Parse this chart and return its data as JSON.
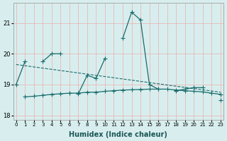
{
  "xlabel": "Humidex (Indice chaleur)",
  "x_values": [
    0,
    1,
    2,
    3,
    4,
    5,
    6,
    7,
    8,
    9,
    10,
    11,
    12,
    13,
    14,
    15,
    16,
    17,
    18,
    19,
    20,
    21,
    22,
    23
  ],
  "line1_y": [
    19.0,
    19.75,
    null,
    19.75,
    20.0,
    20.0,
    null,
    18.7,
    19.3,
    19.2,
    19.85,
    null,
    20.5,
    21.35,
    21.1,
    19.0,
    18.85,
    null,
    18.8,
    18.85,
    18.9,
    18.9,
    null,
    18.5
  ],
  "line2_y": [
    null,
    18.6,
    18.62,
    18.65,
    18.68,
    18.7,
    18.72,
    18.72,
    18.75,
    18.75,
    18.78,
    18.8,
    18.82,
    18.83,
    18.84,
    18.85,
    18.85,
    18.85,
    18.82,
    18.8,
    18.78,
    18.76,
    18.72,
    18.68
  ],
  "trend_x": [
    0,
    23
  ],
  "trend_y": [
    19.65,
    18.75
  ],
  "ylim": [
    17.85,
    21.65
  ],
  "yticks": [
    18,
    19,
    20,
    21
  ],
  "xlim": [
    -0.3,
    23.3
  ],
  "bg_color": "#d8eeee",
  "grid_color_major": "#e8b8b8",
  "line_color": "#1a6b6b",
  "marker_style": "+",
  "marker_size": 4,
  "linewidth": 0.9,
  "xlabel_fontsize": 7,
  "ytick_fontsize": 6,
  "xtick_fontsize": 5
}
